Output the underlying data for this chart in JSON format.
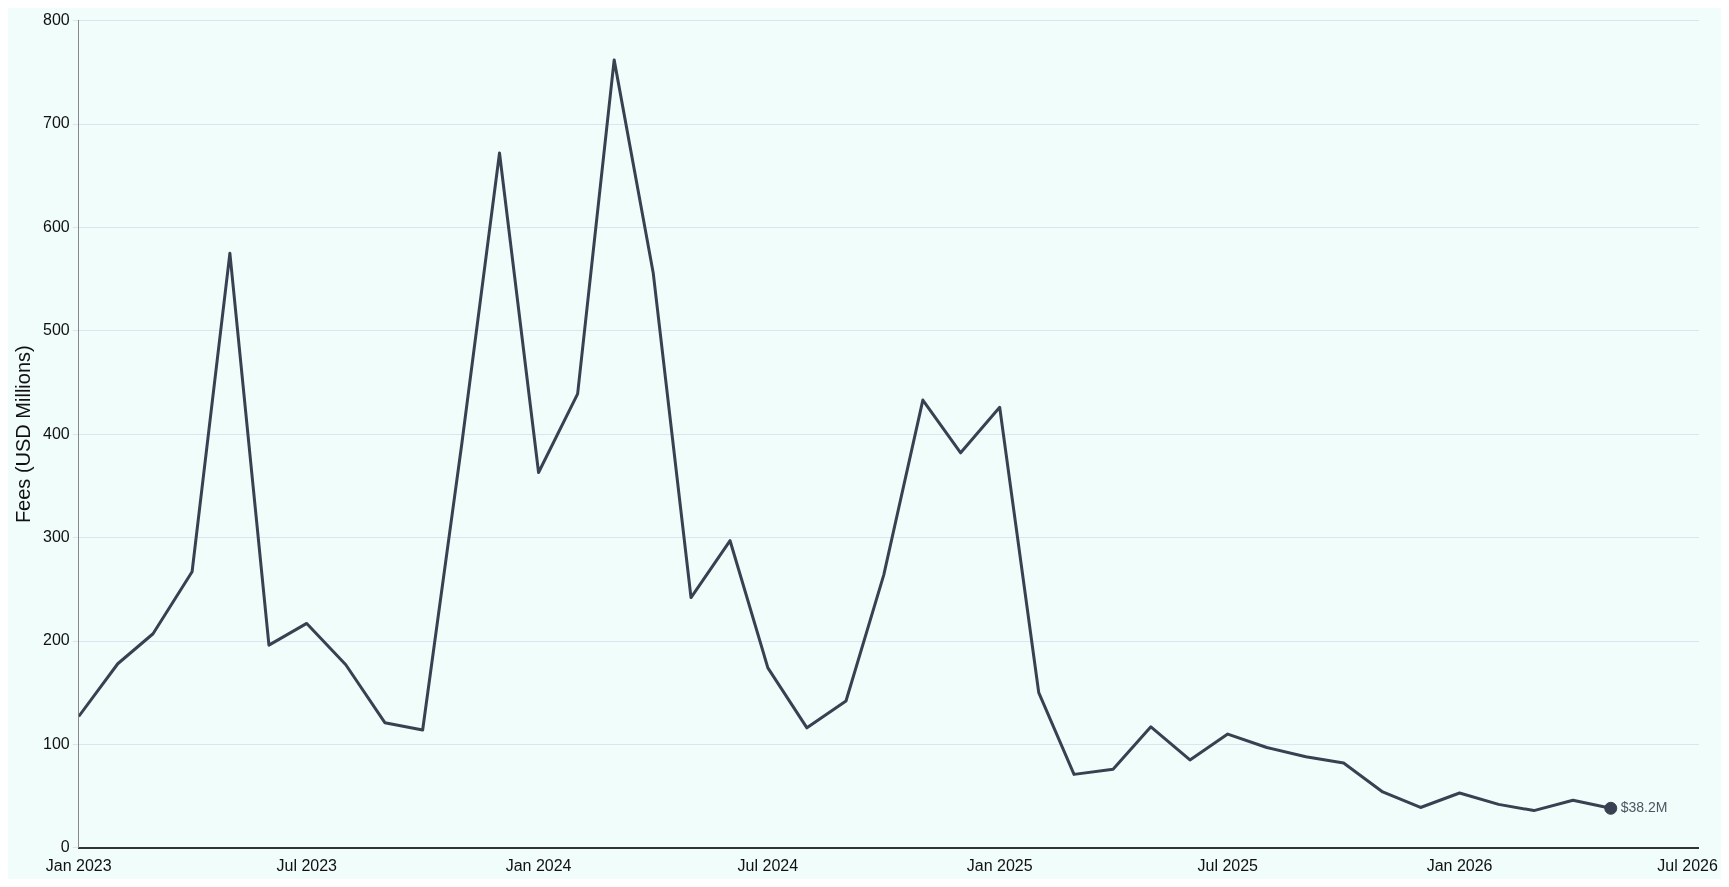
{
  "chart_data": {
    "type": "line",
    "ylabel": "Fees (USD Millions)",
    "x": [
      "2023-01",
      "2023-02",
      "2023-03",
      "2023-04",
      "2023-05",
      "2023-06",
      "2023-07",
      "2023-08",
      "2023-09",
      "2023-10",
      "2023-11",
      "2023-12",
      "2024-01",
      "2024-02",
      "2024-03",
      "2024-04",
      "2024-05",
      "2024-06",
      "2024-07",
      "2024-08",
      "2024-09",
      "2024-10",
      "2024-11",
      "2024-12",
      "2025-01",
      "2025-02",
      "2025-03",
      "2025-04",
      "2025-05",
      "2025-06",
      "2025-07",
      "2025-08",
      "2025-09",
      "2025-10",
      "2025-11",
      "2025-12",
      "2026-01",
      "2026-02",
      "2026-03",
      "2026-04",
      "2026-05"
    ],
    "series": [
      {
        "color": "#374151",
        "marker": "none",
        "values": [
          127,
          178,
          207,
          267,
          575,
          196,
          217,
          177,
          121,
          114,
          390,
          672,
          363,
          439,
          762,
          556,
          242,
          297,
          174,
          116,
          142,
          264,
          433,
          382,
          426,
          150,
          71,
          76,
          117,
          85,
          110,
          97,
          88,
          82,
          54,
          39,
          53,
          42,
          36,
          46,
          38.2
        ]
      },
      {
        "type": "scatter",
        "marker": "circle",
        "color": "#374151",
        "x": [
          "2026-05"
        ],
        "values": [
          38.2
        ]
      }
    ],
    "annotations": [
      {
        "text": "$38.2M",
        "x": "2026-05",
        "y": 38.2
      }
    ],
    "xlim": [
      "2023-01",
      "2026-07-10"
    ],
    "xticks": [
      {
        "value": "2023-01",
        "label": "Jan 2023"
      },
      {
        "value": "2023-07",
        "label": "Jul 2023"
      },
      {
        "value": "2024-01",
        "label": "Jan 2024"
      },
      {
        "value": "2024-07",
        "label": "Jul 2024"
      },
      {
        "value": "2025-01",
        "label": "Jan 2025"
      },
      {
        "value": "2025-07",
        "label": "Jul 2025"
      },
      {
        "value": "2026-01",
        "label": "Jan 2026"
      },
      {
        "value": "2026-07",
        "label": "Jul 2026"
      }
    ],
    "ylim": [
      0,
      800
    ],
    "yticks": [
      0,
      100,
      200,
      300,
      400,
      500,
      600,
      700,
      800
    ],
    "grid": "y",
    "legend": false
  }
}
